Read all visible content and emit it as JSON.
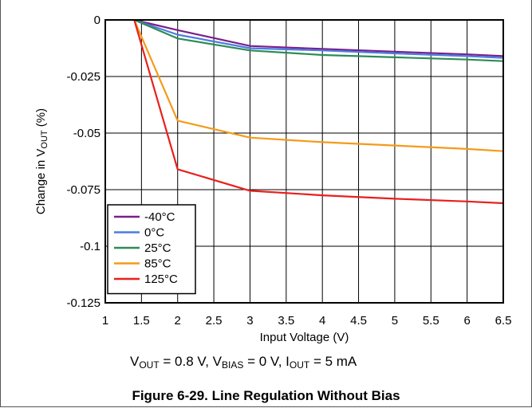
{
  "chart_data": {
    "type": "line",
    "xlabel": "Input Voltage (V)",
    "ylabel_parts": {
      "pre": "Change in V",
      "sub": "OUT",
      "post": " (%)"
    },
    "xlim": [
      1,
      6.5
    ],
    "ylim": [
      -0.125,
      0
    ],
    "x_ticks": [
      1,
      1.5,
      2,
      2.5,
      3,
      3.5,
      4,
      4.5,
      5,
      5.5,
      6,
      6.5
    ],
    "x_tick_labels": [
      "1",
      "1.5",
      "2",
      "2.5",
      "3",
      "3.5",
      "4",
      "4.5",
      "5",
      "5.5",
      "6",
      "6.5"
    ],
    "y_ticks": [
      0,
      -0.025,
      -0.05,
      -0.075,
      -0.1,
      -0.125
    ],
    "y_tick_labels": [
      "0",
      "-0.025",
      "-0.05",
      "-0.075",
      "-0.1",
      "-0.125"
    ],
    "grid": true,
    "legend_position": "bottom-left",
    "x": [
      1.4,
      2,
      3,
      4,
      5,
      6,
      6.5
    ],
    "series": [
      {
        "name": "-40°C",
        "color": "#7b1f8c",
        "values": [
          0,
          -0.0045,
          -0.0115,
          -0.0128,
          -0.014,
          -0.0152,
          -0.016
        ]
      },
      {
        "name": "0°C",
        "color": "#4a7de0",
        "values": [
          0,
          -0.0065,
          -0.0125,
          -0.0135,
          -0.0148,
          -0.016,
          -0.0168
        ]
      },
      {
        "name": "25°C",
        "color": "#2e8b57",
        "values": [
          0,
          -0.0082,
          -0.0135,
          -0.0155,
          -0.0165,
          -0.0175,
          -0.0182
        ]
      },
      {
        "name": "85°C",
        "color": "#f59a1a",
        "values": [
          0,
          -0.0445,
          -0.052,
          -0.054,
          -0.0555,
          -0.057,
          -0.058
        ]
      },
      {
        "name": "125°C",
        "color": "#e8201e",
        "values": [
          0,
          -0.066,
          -0.0755,
          -0.0775,
          -0.079,
          -0.0802,
          -0.081
        ]
      }
    ]
  },
  "conditions": {
    "v1": "V",
    "v1_sub": "OUT",
    "v1_rest": " = 0.8 V, ",
    "v2": "V",
    "v2_sub": "BIAS",
    "v2_rest": " = 0 V, ",
    "v3": "I",
    "v3_sub": "OUT",
    "v3_rest": " = 5 mA"
  },
  "caption": "Figure 6-29. Line Regulation Without Bias"
}
